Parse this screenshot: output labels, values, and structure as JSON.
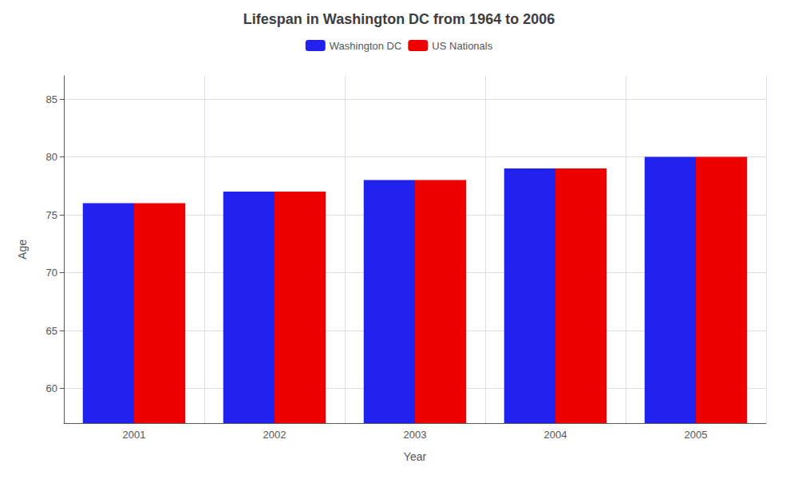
{
  "chart_data": {
    "type": "bar",
    "title": "Lifespan in Washington DC from 1964 to 2006",
    "xlabel": "Year",
    "ylabel": "Age",
    "categories": [
      "2001",
      "2002",
      "2003",
      "2004",
      "2005"
    ],
    "series": [
      {
        "name": "Washington DC",
        "color": "#2222ee",
        "values": [
          76,
          77,
          78,
          79,
          80
        ]
      },
      {
        "name": "US Nationals",
        "color": "#ee0000",
        "values": [
          76,
          77,
          78,
          79,
          80
        ]
      }
    ],
    "ylim": [
      57,
      87
    ],
    "yticks": [
      60,
      65,
      70,
      75,
      80,
      85
    ],
    "grid": true,
    "legend": "top"
  }
}
